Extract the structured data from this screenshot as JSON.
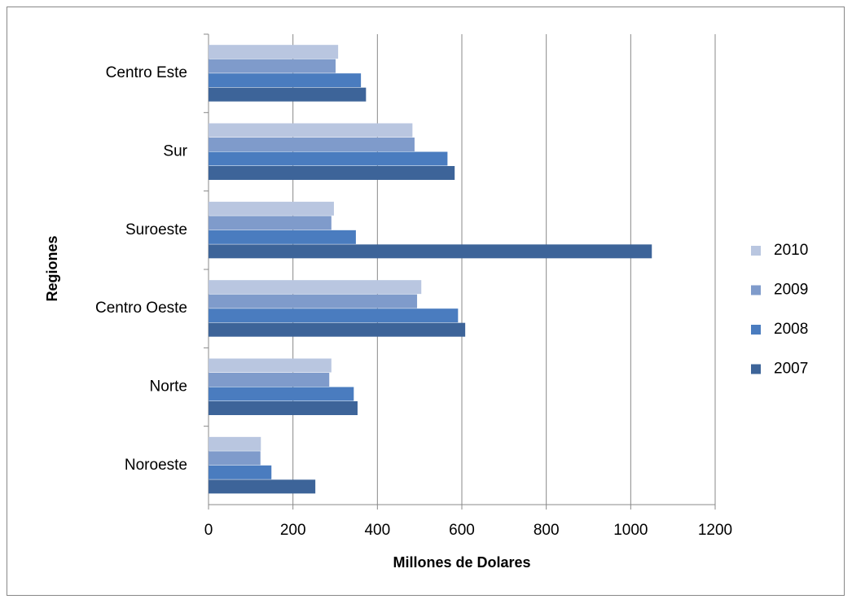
{
  "chart_data": {
    "type": "bar",
    "orientation": "horizontal",
    "xlabel": "Millones de Dolares",
    "ylabel": "Regiones",
    "categories": [
      "Noroeste",
      "Norte",
      "Centro Oeste",
      "Suroeste",
      "Sur",
      "Centro Este"
    ],
    "series": [
      {
        "name": "2010",
        "color": "#b9c6e0",
        "values": [
          124,
          291,
          504,
          297,
          483,
          307
        ]
      },
      {
        "name": "2009",
        "color": "#7f9bcb",
        "values": [
          123,
          286,
          494,
          291,
          488,
          301
        ]
      },
      {
        "name": "2008",
        "color": "#4a7cbf",
        "values": [
          149,
          344,
          591,
          349,
          566,
          361
        ]
      },
      {
        "name": "2007",
        "color": "#3d6499",
        "values": [
          253,
          353,
          608,
          1050,
          583,
          373
        ]
      }
    ],
    "xlim": [
      0,
      1200
    ],
    "xticks": [
      0,
      200,
      400,
      600,
      800,
      1000,
      1200
    ],
    "grid": true,
    "legend": "right"
  }
}
